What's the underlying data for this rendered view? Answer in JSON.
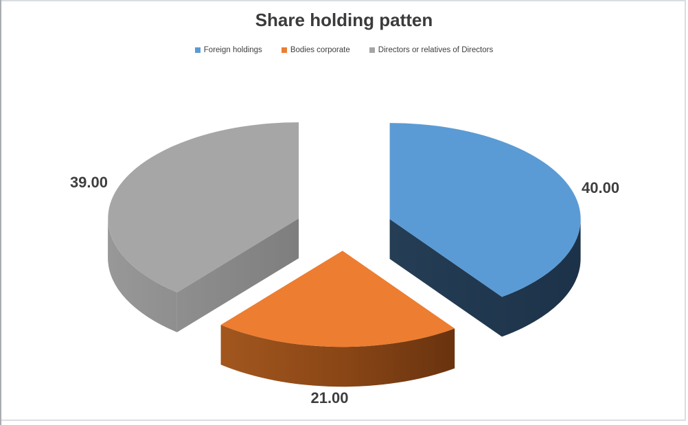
{
  "title": "Share holding patten",
  "legend": {
    "position": "top",
    "items": [
      {
        "label": "Foreign holdings",
        "color": "#5B9BD5"
      },
      {
        "label": "Bodies corporate",
        "color": "#ED7D31"
      },
      {
        "label": "Directors or relatives of Directors",
        "color": "#A5A5A5"
      }
    ]
  },
  "chart_data": {
    "type": "pie",
    "style": "3d-exploded",
    "title": "Share holding patten",
    "categories": [
      "Foreign holdings",
      "Bodies corporate",
      "Directors or relatives of Directors"
    ],
    "values": [
      40,
      21,
      39
    ],
    "labels": [
      "40.00",
      "21.00",
      "39.00"
    ],
    "label_position": "outside-end",
    "start_angle_deg": 0,
    "direction": "clockwise",
    "legend_position": "top",
    "background": "#FFFFFF",
    "colors": {
      "top": [
        "#5B9BD5",
        "#ED7D31",
        "#A6A6A6"
      ],
      "side_stops": [
        [
          "#2A4660",
          "#253E55",
          "#1C3249"
        ],
        [
          "#B06023",
          "#8A4616",
          "#52260A"
        ],
        [
          "#989898",
          "#7E7E7E",
          "#6F6F6F"
        ]
      ],
      "label_text": "#3E3E3E",
      "title_text": "#3B3B3B",
      "frame_border": "#DADDE0"
    }
  }
}
